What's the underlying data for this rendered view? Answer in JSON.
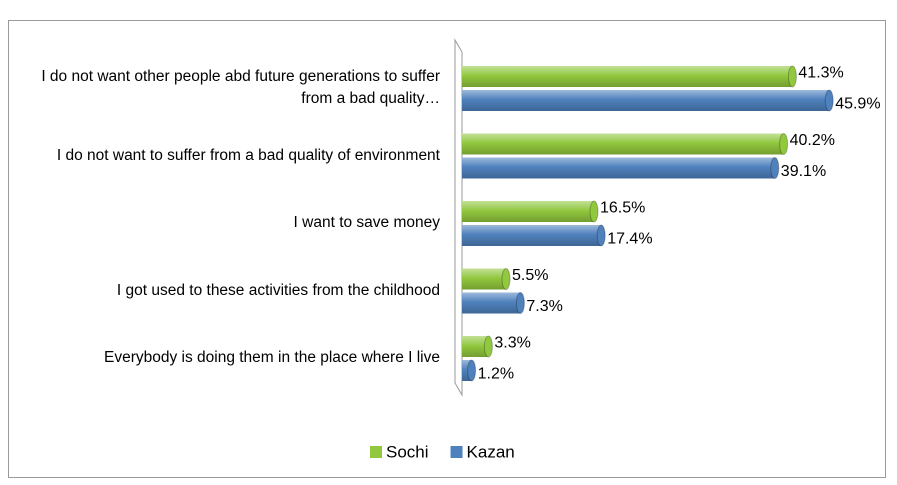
{
  "chart_data": {
    "type": "bar",
    "orientation": "horizontal",
    "categories": [
      "I do not want other people abd future generations to suffer from a bad quality…",
      "I do not want to suffer from a bad quality of environment",
      "I want to save money",
      "I got used to these activities from the childhood",
      "Everybody is doing them in the place where I live"
    ],
    "series": [
      {
        "name": "Sochi",
        "color": "#92c83e",
        "values": [
          41.3,
          40.2,
          16.5,
          5.5,
          3.3
        ],
        "value_labels": [
          "41.3%",
          "40.2%",
          "16.5%",
          "5.5%",
          "3.3%"
        ]
      },
      {
        "name": "Kazan",
        "color": "#4f81bd",
        "values": [
          45.9,
          39.1,
          17.4,
          7.3,
          1.2
        ],
        "value_labels": [
          "45.9%",
          "39.1%",
          "17.4%",
          "7.3%",
          "1.2%"
        ]
      }
    ],
    "xlim": [
      0,
      50
    ],
    "legend": "bottom"
  }
}
